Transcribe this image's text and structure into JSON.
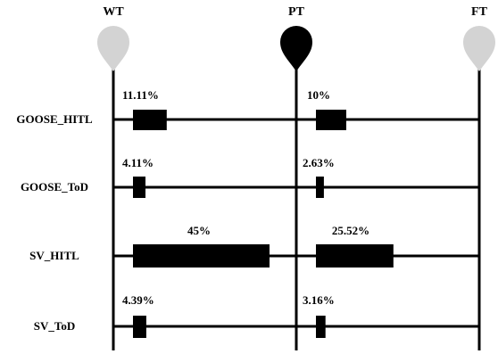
{
  "markers": [
    {
      "label": "WT",
      "color": "#d3d3d3"
    },
    {
      "label": "PT",
      "color": "#000000"
    },
    {
      "label": "FT",
      "color": "#d3d3d3"
    }
  ],
  "rows": [
    {
      "label": "GOOSE_HITL",
      "before": {
        "value": 11.11,
        "text": "11.11%"
      },
      "after": {
        "value": 10,
        "text": "10%"
      }
    },
    {
      "label": "GOOSE_ToD",
      "before": {
        "value": 4.11,
        "text": "4.11%"
      },
      "after": {
        "value": 2.63,
        "text": "2.63%"
      }
    },
    {
      "label": "SV_HITL",
      "before": {
        "value": 45,
        "text": "45%"
      },
      "after": {
        "value": 25.52,
        "text": "25.52%"
      }
    },
    {
      "label": "SV_ToD",
      "before": {
        "value": 4.39,
        "text": "4.39%"
      },
      "after": {
        "value": 3.16,
        "text": "3.16%"
      }
    }
  ]
}
